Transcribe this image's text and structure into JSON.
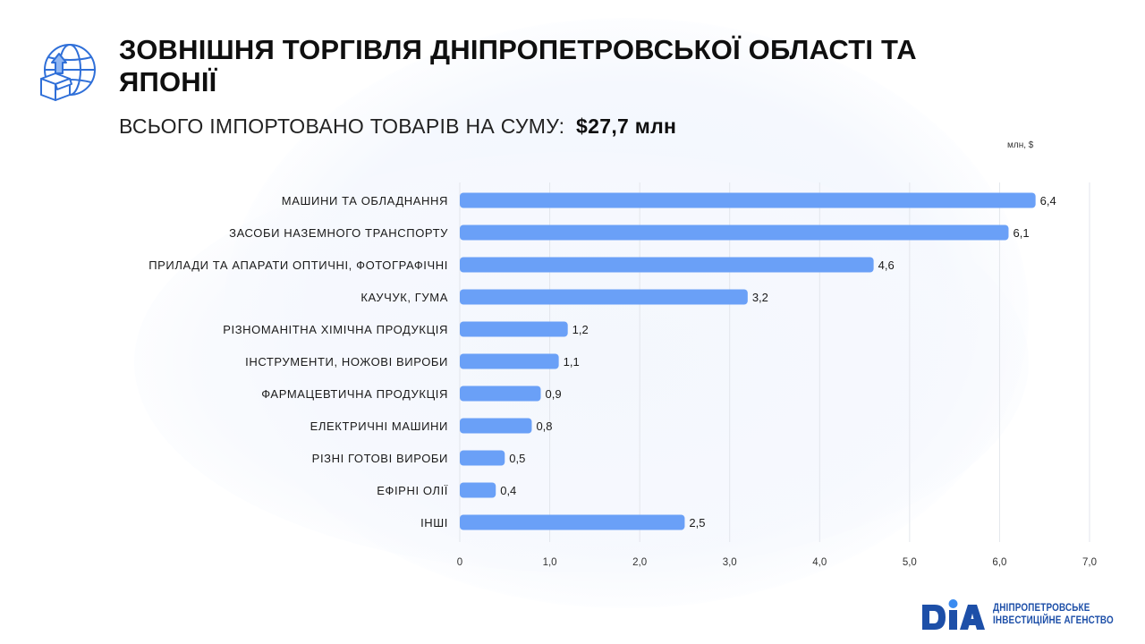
{
  "header": {
    "title": "ЗОВНІШНЯ ТОРГІВЛЯ ДНІПРОПЕТРОВСЬКОЇ ОБЛАСТІ ТА ЯПОНІЇ",
    "subtitle_text": "ВСЬОГО ІМПОРТОВАНО ТОВАРІВ НА СУМУ:",
    "subtitle_total": "$27,7 млн",
    "icon": "globe-with-box-icon"
  },
  "chart_data": {
    "type": "bar",
    "orientation": "horizontal",
    "unit_label": "млн, $",
    "categories": [
      "МАШИНИ ТА ОБЛАДНАННЯ",
      "ЗАСОБИ НАЗЕМНОГО ТРАНСПОРТУ",
      "ПРИЛАДИ ТА АПАРАТИ ОПТИЧНІ, ФОТОГРАФІЧНІ",
      "КАУЧУК, ГУМА",
      "РІЗНОМАНІТНА ХІМІЧНА ПРОДУКЦІЯ",
      "ІНСТРУМЕНТИ, НОЖОВІ ВИРОБИ",
      "ФАРМАЦЕВТИЧНА ПРОДУКЦІЯ",
      "ЕЛЕКТРИЧНІ МАШИНИ",
      "РІЗНІ ГОТОВІ ВИРОБИ",
      "ЕФІРНІ ОЛІЇ",
      "ІНШІ"
    ],
    "values": [
      6.4,
      6.1,
      4.6,
      3.2,
      1.2,
      1.1,
      0.9,
      0.8,
      0.5,
      0.4,
      2.5
    ],
    "value_labels": [
      "6,4",
      "6,1",
      "4,6",
      "3,2",
      "1,2",
      "1,1",
      "0,9",
      "0,8",
      "0,5",
      "0,4",
      "2,5"
    ],
    "xlim": [
      0,
      7
    ],
    "ticks": [
      0,
      1,
      2,
      3,
      4,
      5,
      6,
      7
    ],
    "tick_labels": [
      "0",
      "1,0",
      "2,0",
      "3,0",
      "4,0",
      "5,0",
      "6,0",
      "7,0"
    ],
    "grid": true,
    "bar_color": "#6aa0f7"
  },
  "branding": {
    "logo_mark": "DIA",
    "logo_line1": "ДНІПРОПЕТРОВСЬКЕ",
    "logo_line2": "ІНВЕСТИЦІЙНЕ АГЕНСТВО",
    "accent_color": "#1d4fa8",
    "dot_color": "#3a8bf0"
  }
}
